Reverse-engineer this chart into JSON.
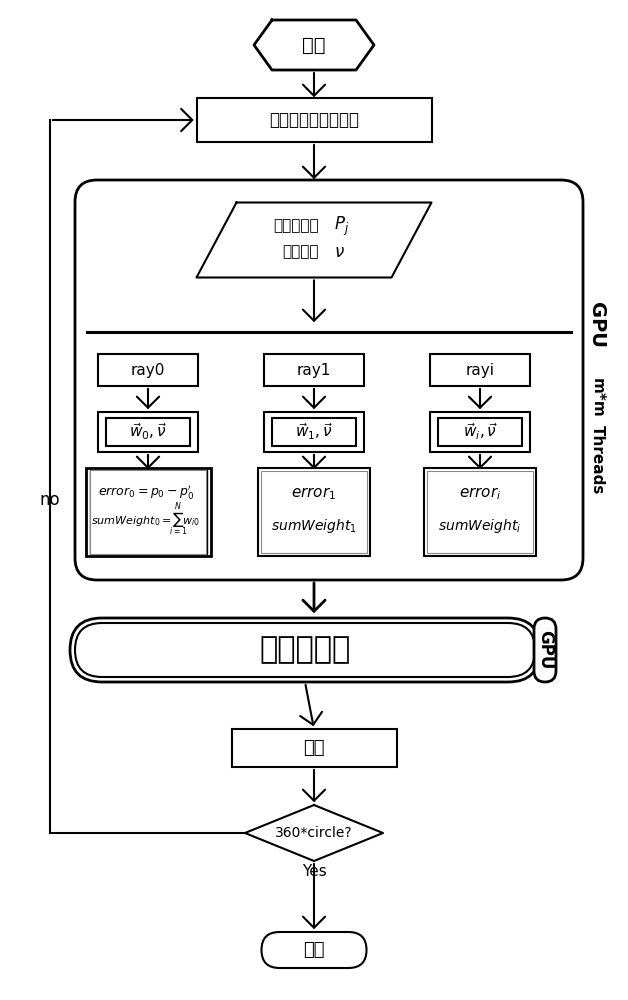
{
  "bg_color": "#ffffff",
  "line_color": "#000000",
  "fig_width": 6.28,
  "fig_height": 10.0,
  "lw": 1.5,
  "start_label": "开始",
  "read_label": "从文件读取投影数据",
  "proj_line1": "投影数据：",
  "proj_Pj": "P_j",
  "proj_line2": "体数据：",
  "proj_v": "v",
  "ray_labels": [
    "ray0",
    "ray1",
    "rayi"
  ],
  "w_labels": [
    "w_0,v",
    "w_1,v",
    "w_i,v"
  ],
  "err0_line1": "error_0 = p_0 - p_0'",
  "err0_line2": "sumWeight_0 = sum w_i0",
  "err1_line1": "error_1",
  "err1_line2": "sumWeight_1",
  "erri_line1": "error_i",
  "erri_line2": "sumWeight_i",
  "no_label": "no",
  "gpu_label1": "GPU",
  "gpu_label2": "m*m",
  "gpu_label3": "Threads",
  "backproj_label": "反投，更新",
  "gpu2_label": "GPU",
  "rotate_label": "旋转",
  "diamond_label": "360*circle?",
  "yes_label": "Yes",
  "end_label": "结束"
}
